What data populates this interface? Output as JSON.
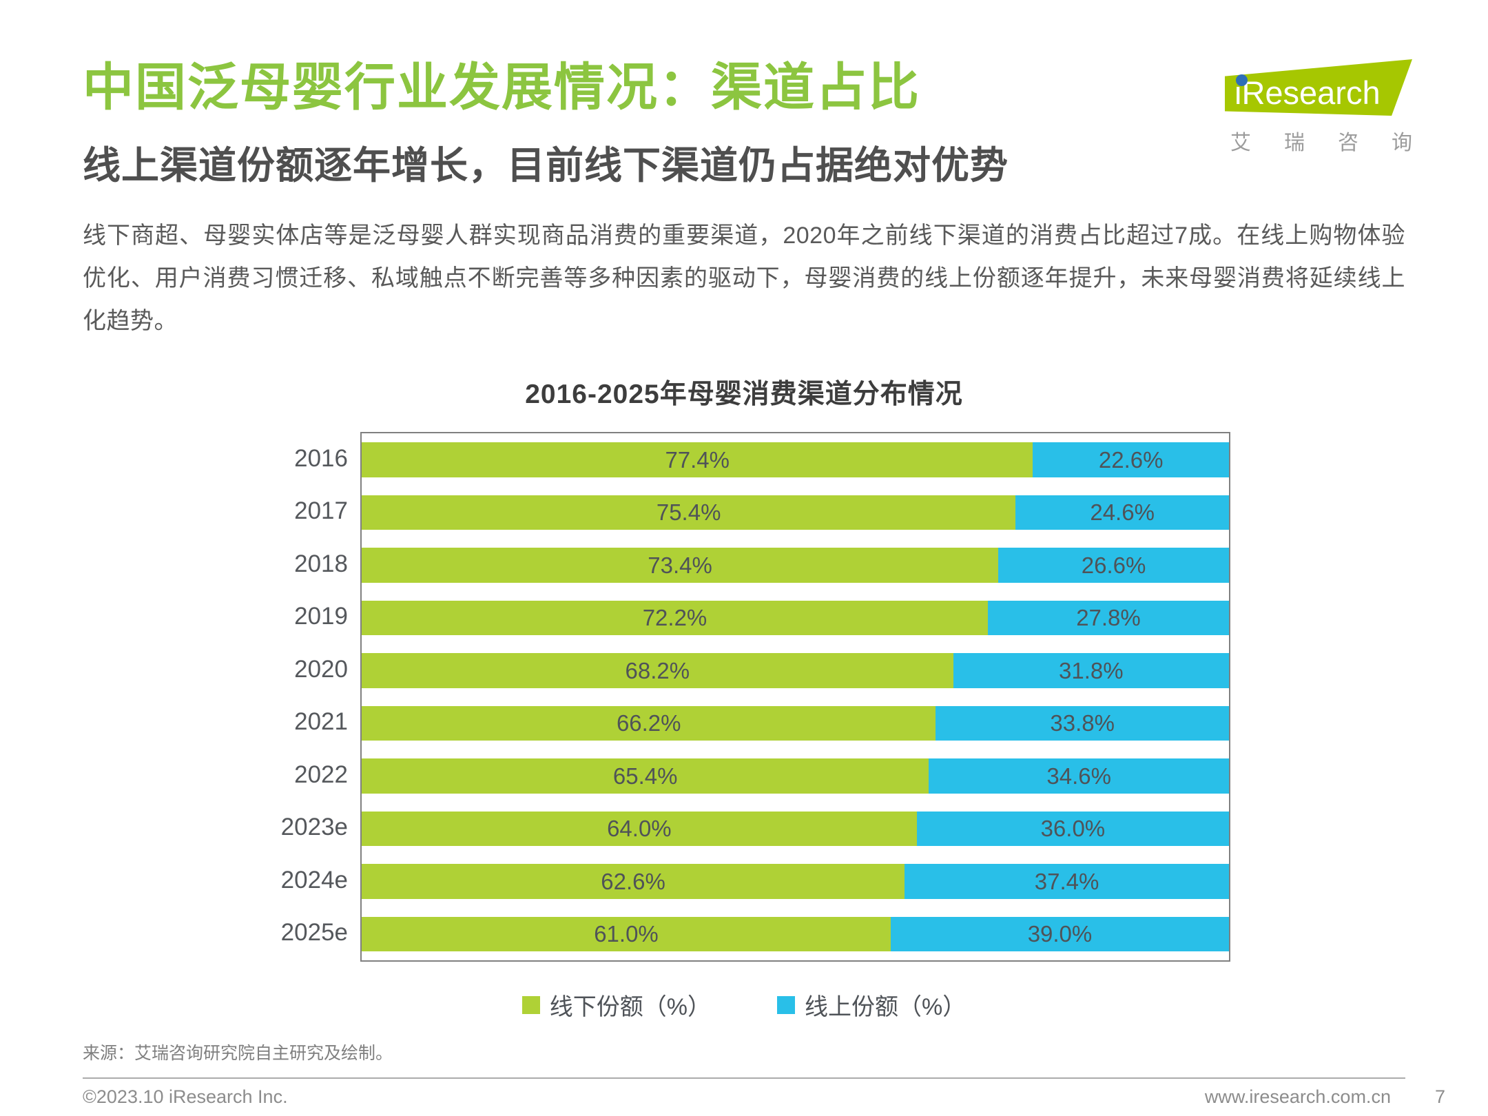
{
  "page": {
    "title": "中国泛母婴行业发展情况：渠道占比",
    "subtitle": "线上渠道份额逐年增长，目前线下渠道仍占据绝对优势",
    "body": "线下商超、母婴实体店等是泛母婴人群实现商品消费的重要渠道，2020年之前线下渠道的消费占比超过7成。在线上购物体验优化、用户消费习惯迁移、私域触点不断完善等多种因素的驱动下，母婴消费的线上份额逐年提升，未来母婴消费将延续线上化趋势。",
    "source": "来源：艾瑞咨询研究院自主研究及绘制。",
    "footer": {
      "left": "©2023.10 iResearch Inc.",
      "right": "www.iresearch.com.cn",
      "page_number": "7"
    }
  },
  "logo": {
    "name": "iResearch",
    "chinese": "艾瑞咨询"
  },
  "colors": {
    "title_green": "#8CC540",
    "logo_green": "#A6C701",
    "logo_dot_blue": "#2E6FB7",
    "offline_green": "#AFD136",
    "online_blue": "#29BFE8",
    "text_dark": "#4F4F4F",
    "text_gray": "#7F7F7F"
  },
  "chart_data": {
    "type": "bar",
    "orientation": "horizontal-stacked",
    "title": "2016-2025年母婴消费渠道分布情况",
    "categories": [
      "2016",
      "2017",
      "2018",
      "2019",
      "2020",
      "2021",
      "2022",
      "2023e",
      "2024e",
      "2025e"
    ],
    "series": [
      {
        "name": "线下份额（%）",
        "color": "#AFD136",
        "values": [
          77.4,
          75.4,
          73.4,
          72.2,
          68.2,
          66.2,
          65.4,
          64.0,
          62.6,
          61.0
        ]
      },
      {
        "name": "线上份额（%）",
        "color": "#29BFE8",
        "values": [
          22.6,
          24.6,
          26.6,
          27.8,
          31.8,
          33.8,
          34.6,
          36.0,
          37.4,
          39.0
        ]
      }
    ],
    "xlim": [
      0,
      100
    ],
    "value_suffix": "%",
    "value_decimals": 1,
    "grid": false,
    "legend_position": "bottom",
    "data_labels": "inside-center"
  }
}
